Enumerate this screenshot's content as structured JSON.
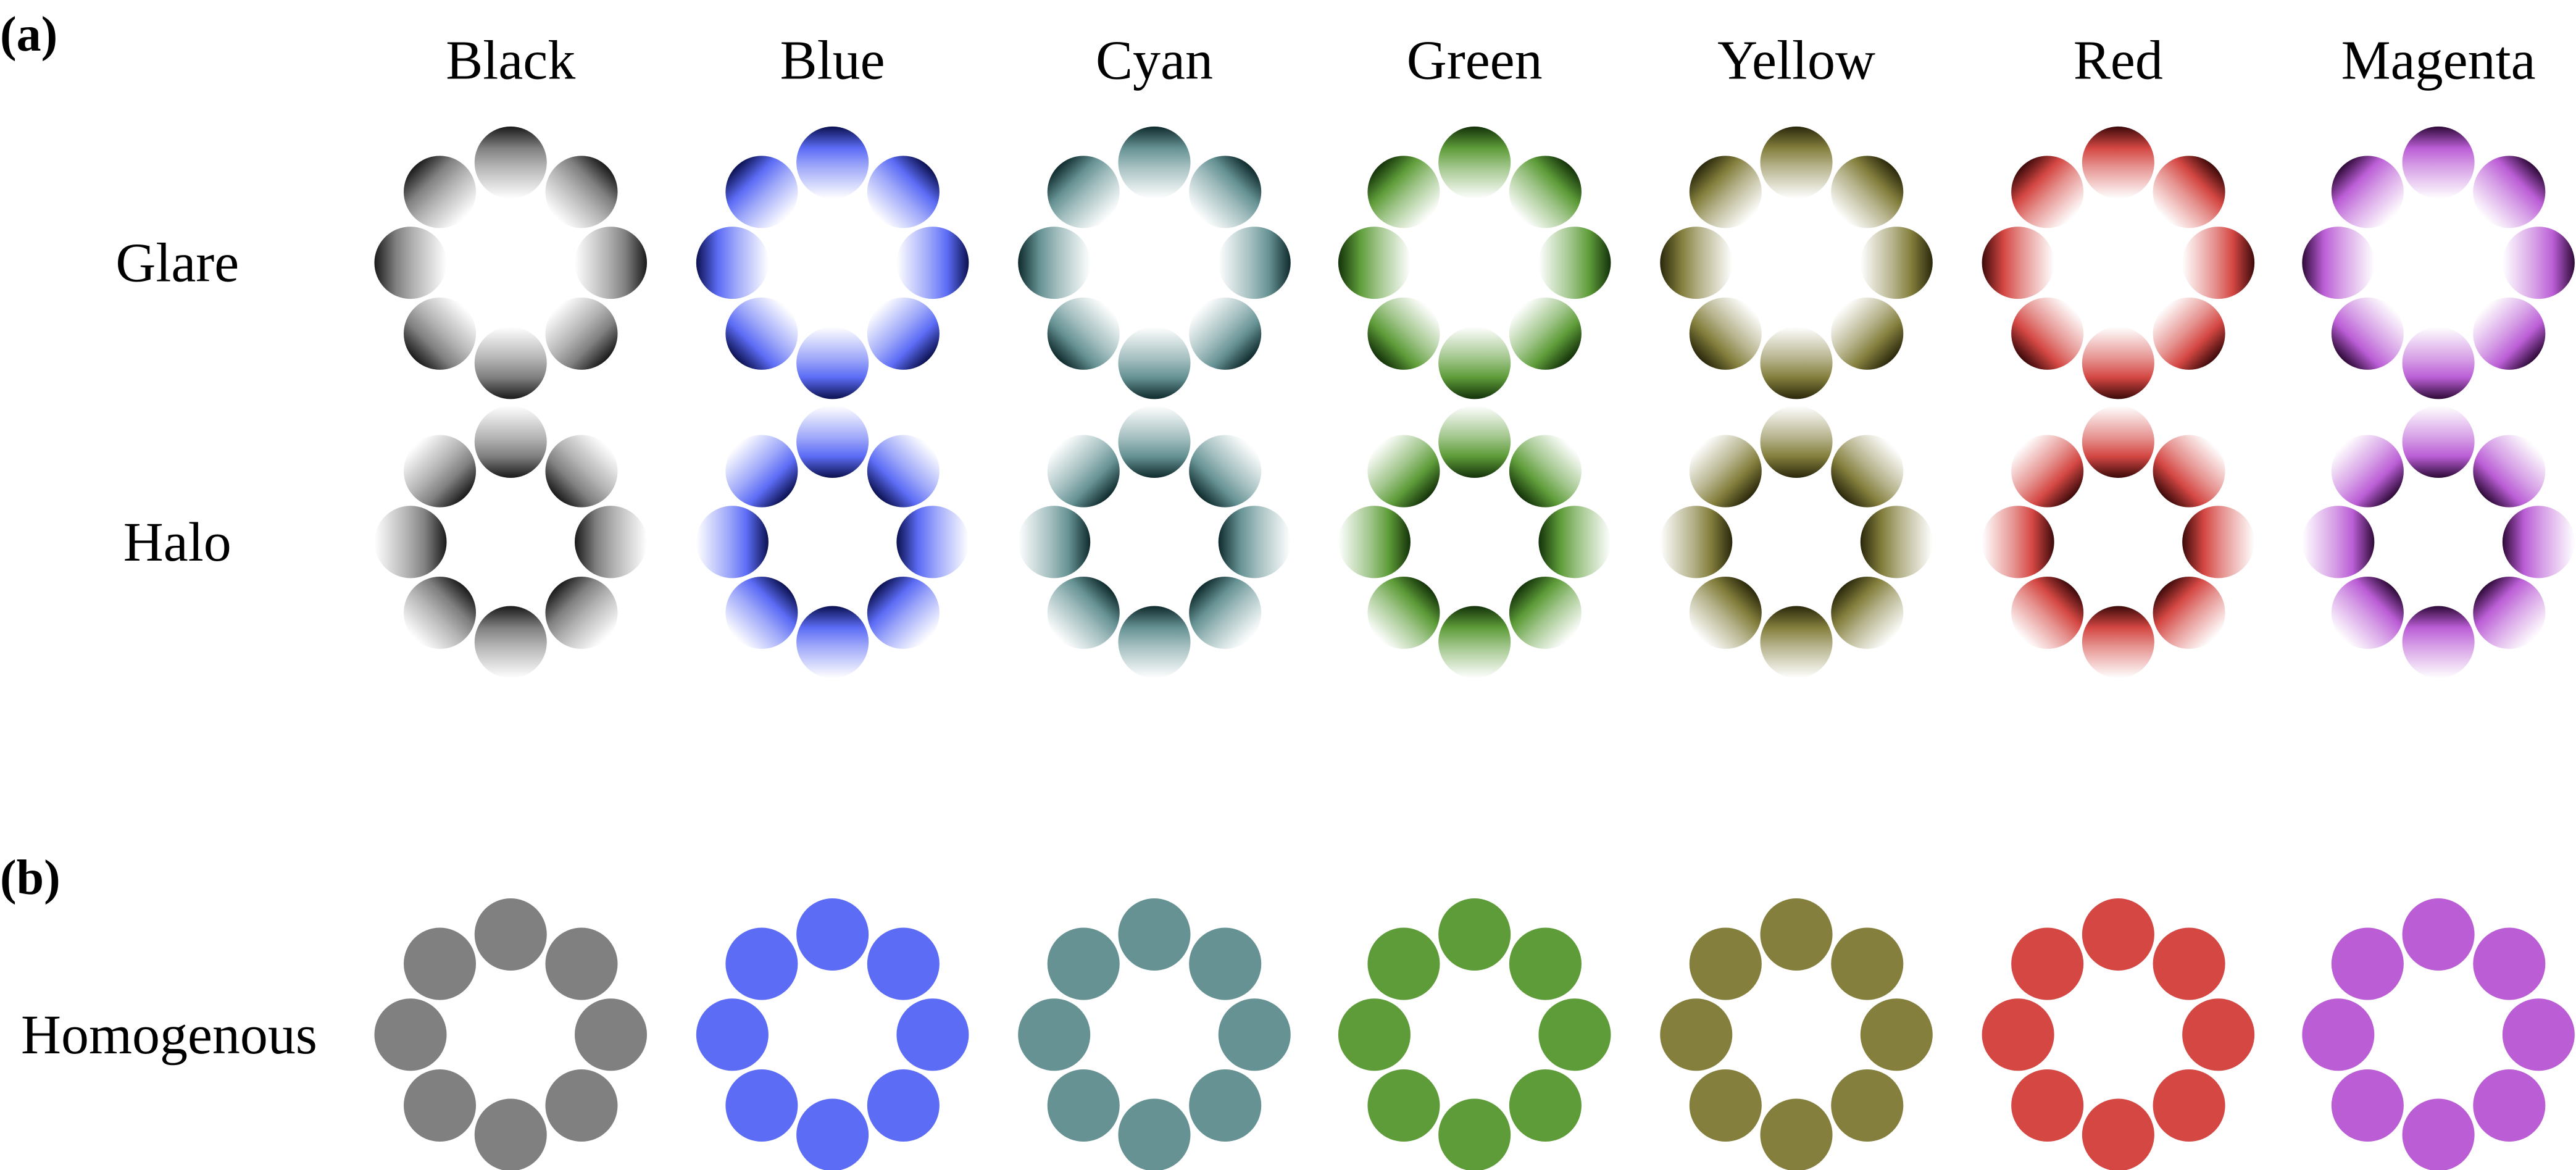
{
  "panels": {
    "a": "(a)",
    "b": "(b)"
  },
  "colors": [
    {
      "name": "Black",
      "base": "#808080",
      "dark": "#1a1a1a"
    },
    {
      "name": "Blue",
      "base": "#5c6cf5",
      "dark": "#0b1150"
    },
    {
      "name": "Cyan",
      "base": "#669294",
      "dark": "#0f2a2c"
    },
    {
      "name": "Green",
      "base": "#5e9c39",
      "dark": "#14320a"
    },
    {
      "name": "Yellow",
      "base": "#847f3d",
      "dark": "#2a280c"
    },
    {
      "name": "Red",
      "base": "#d44743",
      "dark": "#3c0a0a"
    },
    {
      "name": "Magenta",
      "base": "#bb5ed6",
      "dark": "#2e0a38"
    }
  ],
  "rows": [
    {
      "label": "Glare",
      "style": "glare"
    },
    {
      "label": "Halo",
      "style": "halo"
    },
    {
      "label": "Homogenous",
      "style": "homogenous"
    }
  ]
}
